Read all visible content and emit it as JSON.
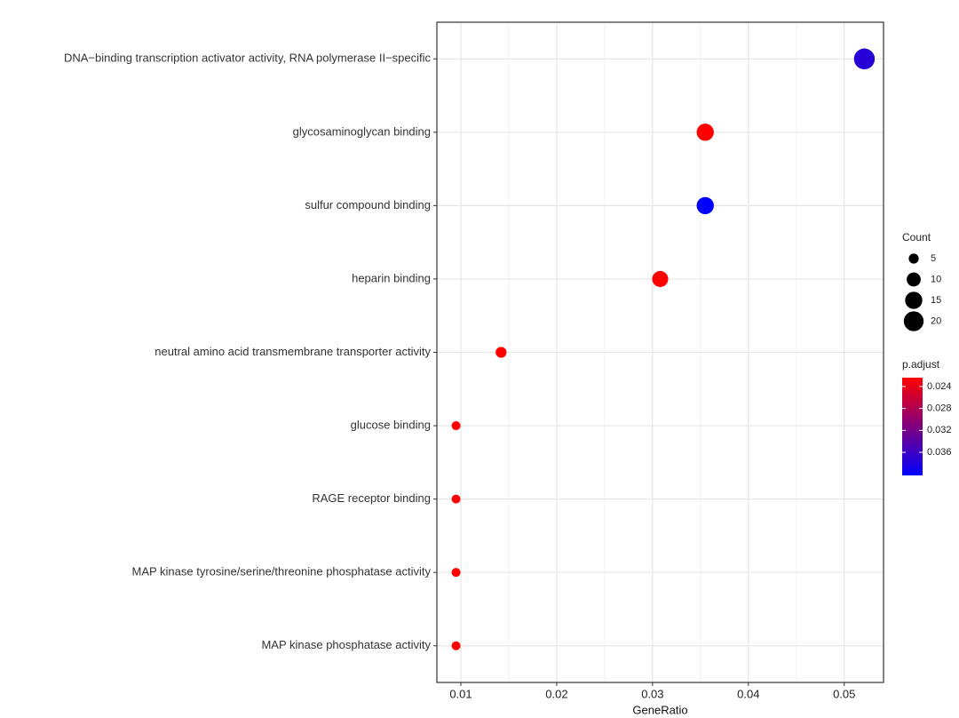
{
  "chart_data": {
    "type": "dot",
    "x_label": "GeneRatio",
    "categories": [
      "DNA−binding transcription activator activity, RNA polymerase II−specific",
      "glycosaminoglycan binding",
      "sulfur compound binding",
      "heparin binding",
      "neutral amino acid transmembrane transporter activity",
      "glucose binding",
      "RAGE receptor binding",
      "MAP kinase tyrosine/serine/threonine phosphatase activity",
      "MAP kinase phosphatase activity"
    ],
    "values": [
      0.0521,
      0.0355,
      0.0355,
      0.0308,
      0.0142,
      0.0095,
      0.0095,
      0.0095,
      0.0095
    ],
    "count": [
      22,
      15,
      15,
      13,
      6,
      4,
      4,
      4,
      4
    ],
    "p_adjust": [
      0.0375,
      0.0224,
      0.0402,
      0.0224,
      0.0224,
      0.0224,
      0.0224,
      0.0224,
      0.0224
    ],
    "xlim": [
      0.0075,
      0.0541
    ],
    "xticks": [
      0.01,
      0.02,
      0.03,
      0.04,
      0.05
    ],
    "grid": true,
    "size_legend": {
      "title": "Count",
      "values": [
        5,
        10,
        15,
        20
      ],
      "color": "#000000"
    },
    "color_legend": {
      "title": "p.adjust",
      "lim": [
        0.0224,
        0.0402
      ],
      "ticks": [
        0.024,
        0.028,
        0.032,
        0.036
      ],
      "low_color": "#ff0000",
      "high_color": "#0000ff"
    }
  }
}
